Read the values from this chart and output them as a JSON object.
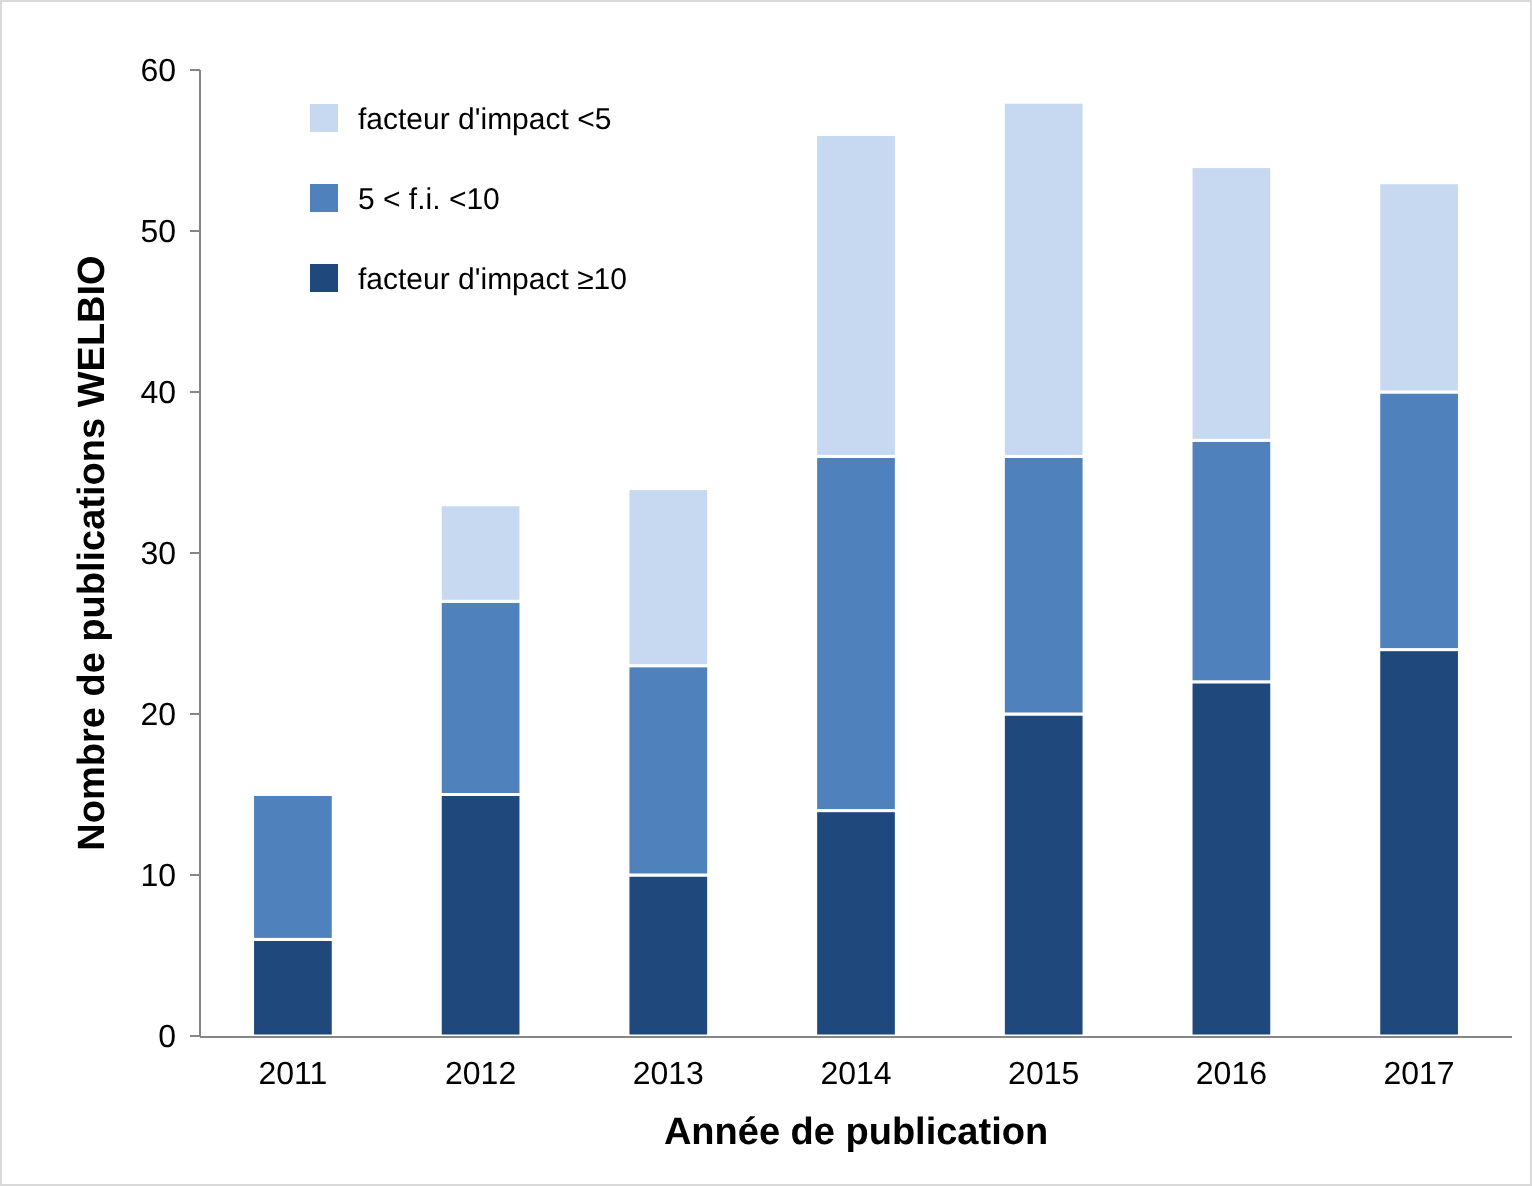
{
  "chart_data": {
    "type": "bar",
    "stacked": true,
    "xlabel": "Année de publication",
    "ylabel": "Nombre de publications WELBIO",
    "categories": [
      "2011",
      "2012",
      "2013",
      "2014",
      "2015",
      "2016",
      "2017"
    ],
    "series": [
      {
        "name": "facteur d'impact ≥10",
        "color": "#1f497d",
        "values": [
          6,
          15,
          10,
          14,
          20,
          22,
          24
        ]
      },
      {
        "name": "5 < f.i. <10",
        "color": "#4f81bd",
        "values": [
          9,
          12,
          13,
          22,
          16,
          15,
          16
        ]
      },
      {
        "name": "facteur d'impact <5",
        "color": "#c6d9f1",
        "values": [
          0,
          6,
          11,
          20,
          22,
          17,
          13
        ]
      }
    ],
    "ylim": [
      0,
      60
    ],
    "yticks": [
      0,
      10,
      20,
      30,
      40,
      50,
      60
    ],
    "legend": "top left"
  }
}
